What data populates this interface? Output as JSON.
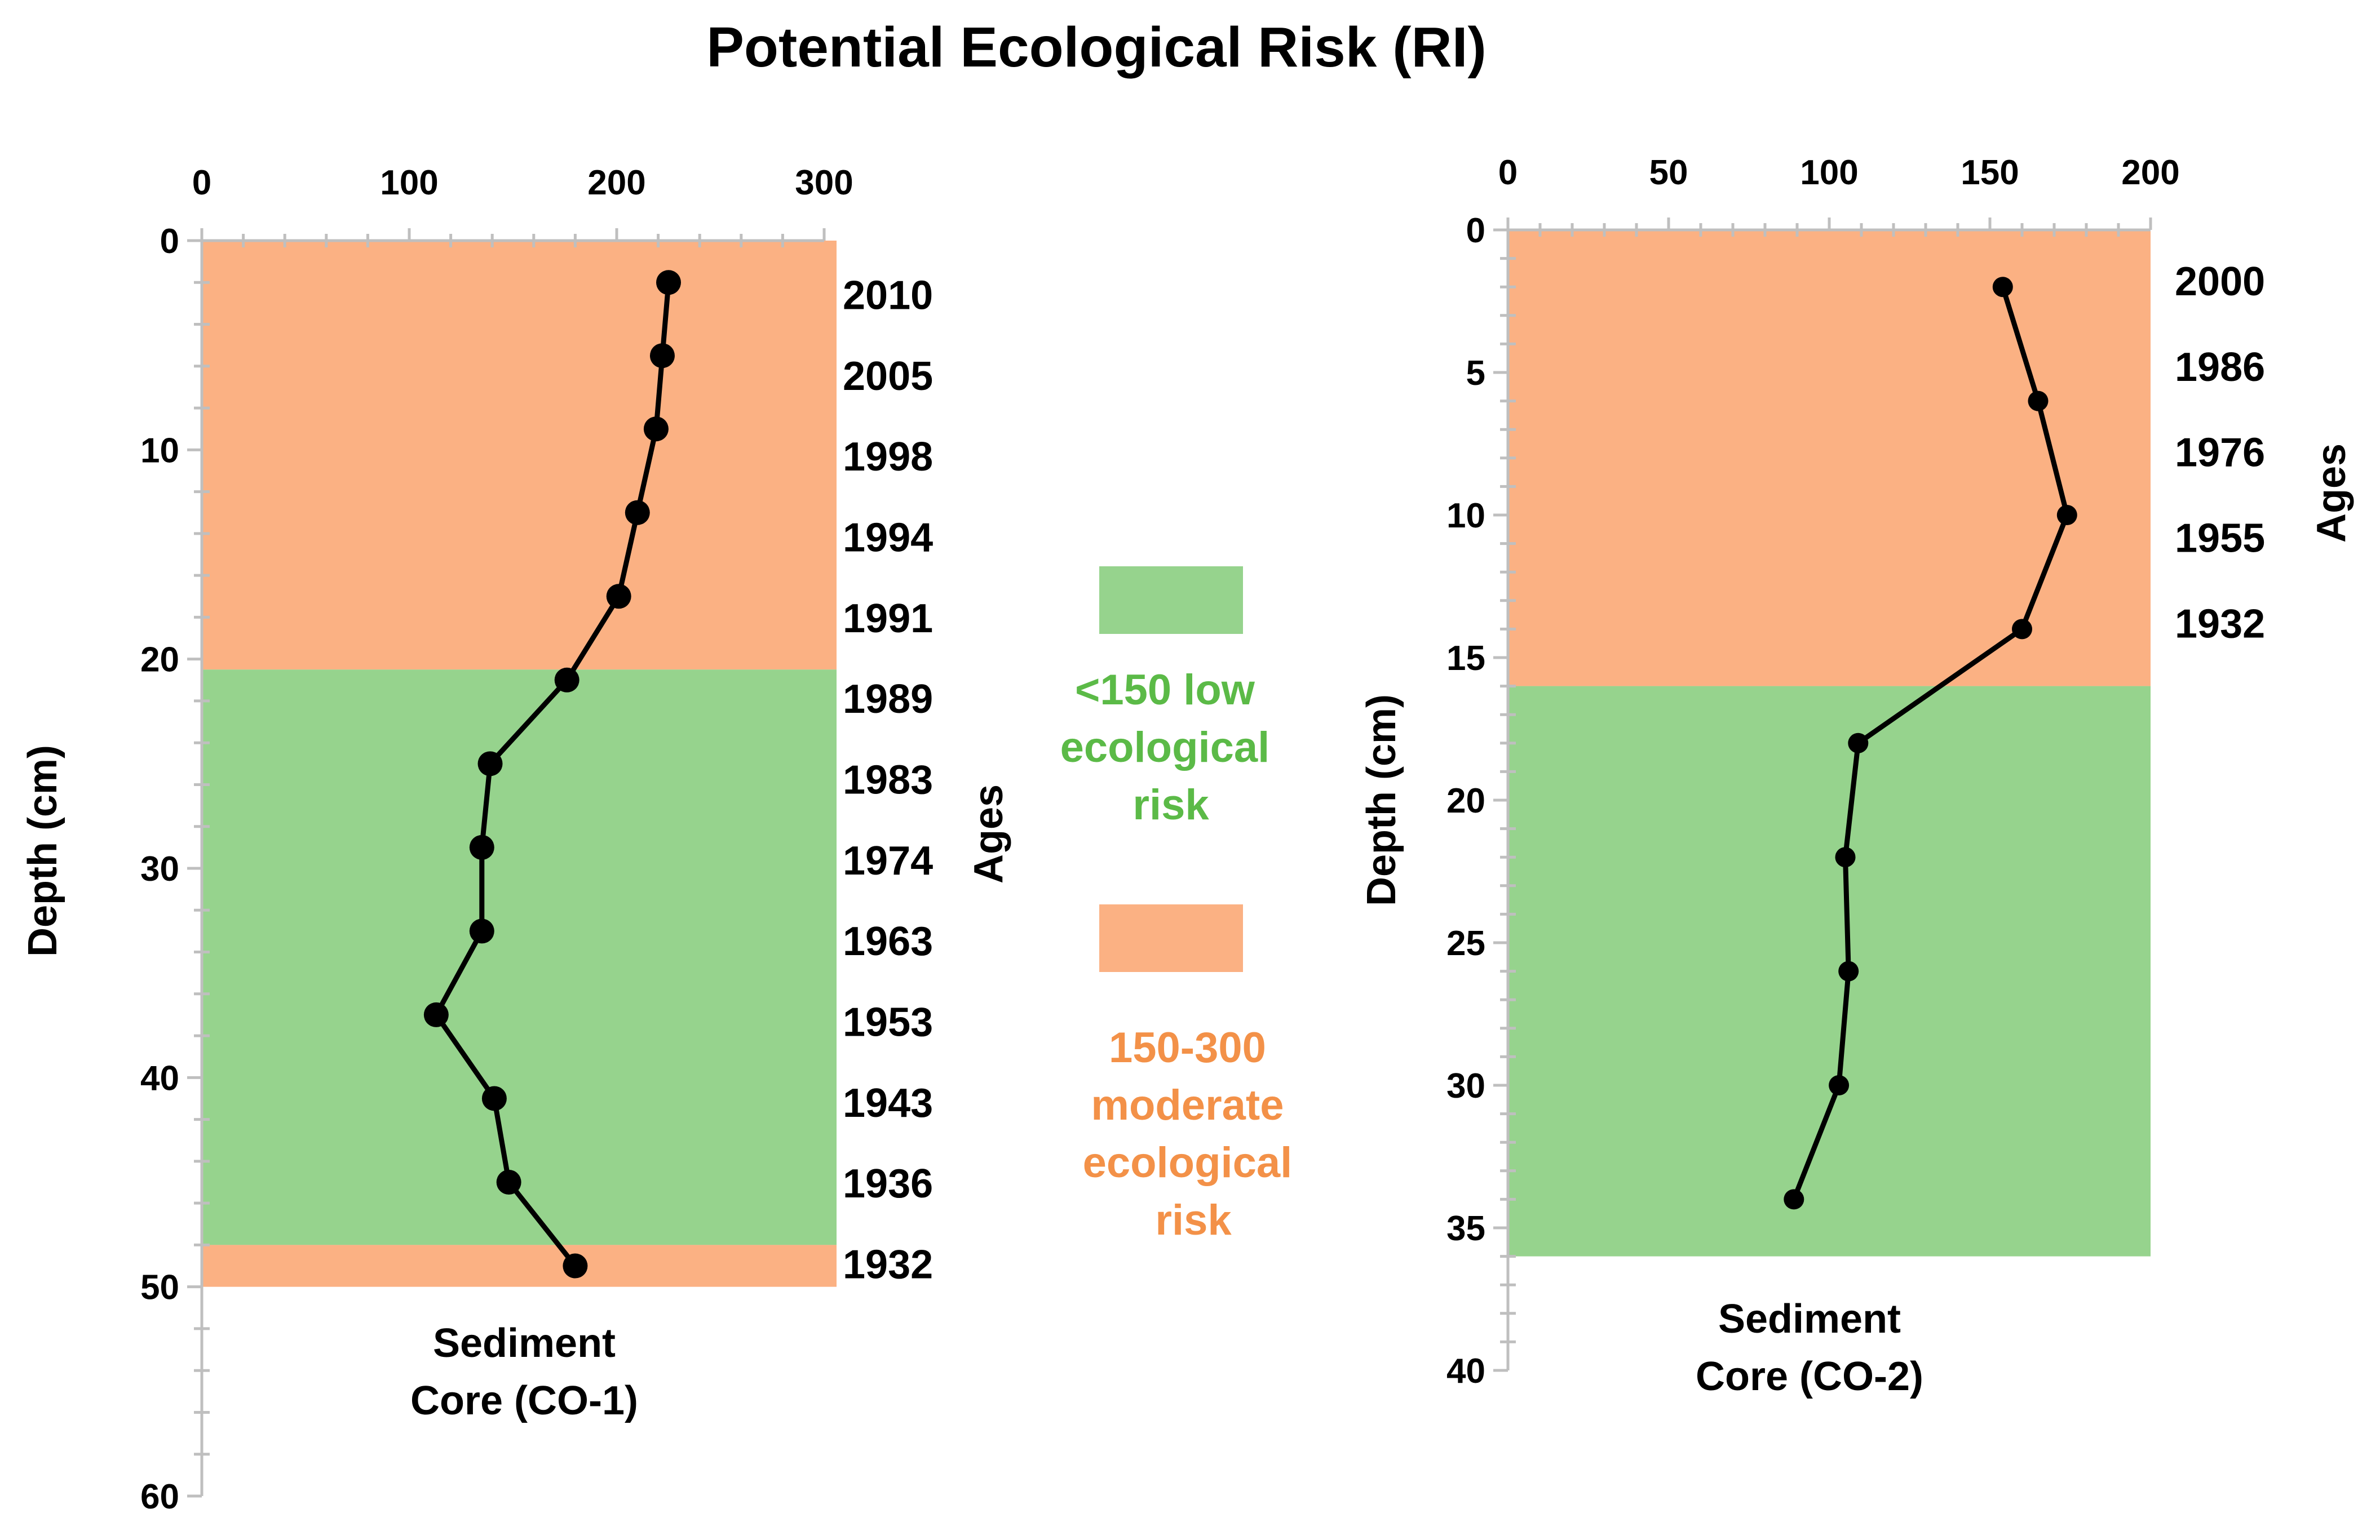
{
  "title": "Potential Ecological Risk (RI)",
  "colors": {
    "low": "#96d38d",
    "moderate": "#fbb183",
    "low_text": "#5bba47",
    "moderate_text": "#f39148",
    "line": "#000000",
    "axis": "#bfbfbf"
  },
  "legend": {
    "low_lines": [
      "<150 low",
      "ecological",
      "risk"
    ],
    "moderate_lines": [
      "150-300",
      "moderate",
      "ecological",
      "risk"
    ]
  },
  "chart_data": [
    {
      "type": "line",
      "xlabel": "Sediment Core (CO-1)",
      "xlabel_lines": [
        "Sediment",
        "Core (CO-1)"
      ],
      "ylabel": "Depth (cm)",
      "ages_label": "Ages",
      "xlim": [
        0,
        300
      ],
      "ylim": [
        0,
        60
      ],
      "xticks": [
        0,
        100,
        200,
        300
      ],
      "yticks": [
        0,
        10,
        20,
        30,
        40,
        50,
        60
      ],
      "bands": [
        {
          "class": "moderate",
          "x_from": 0,
          "x_to": 300,
          "y_from": 0,
          "y_to": 20.5
        },
        {
          "class": "low",
          "x_from": 0,
          "x_to": 300,
          "y_from": 20.5,
          "y_to": 48
        },
        {
          "class": "moderate",
          "x_from": 0,
          "x_to": 300,
          "y_from": 48,
          "y_to": 50
        }
      ],
      "series": [
        {
          "x": [
            225,
            222,
            219,
            210,
            201,
            176,
            139,
            135,
            135,
            113,
            141,
            148,
            180
          ],
          "y": [
            2,
            5.5,
            9,
            13,
            17,
            21,
            25,
            29,
            33,
            37,
            41,
            45,
            49
          ]
        }
      ],
      "ages": [
        "2010",
        "2005",
        "1998",
        "1994",
        "1991",
        "1989",
        "1983",
        "1974",
        "1963",
        "1953",
        "1943",
        "1936",
        "1932"
      ]
    },
    {
      "type": "line",
      "xlabel": "Sediment Core (CO-2)",
      "xlabel_lines": [
        "Sediment",
        "Core (CO-2)"
      ],
      "ylabel": "Depth (cm)",
      "ages_label": "Ages",
      "xlim": [
        0,
        200
      ],
      "ylim": [
        0,
        40
      ],
      "xticks": [
        0,
        50,
        100,
        150,
        200
      ],
      "yticks": [
        0,
        5,
        10,
        15,
        20,
        25,
        30,
        35,
        40
      ],
      "bands": [
        {
          "class": "moderate",
          "x_from": 0,
          "x_to": 200,
          "y_from": 0,
          "y_to": 16
        },
        {
          "class": "low",
          "x_from": 0,
          "x_to": 200,
          "y_from": 16,
          "y_to": 36
        }
      ],
      "series": [
        {
          "x": [
            154,
            165,
            174,
            160,
            109,
            105,
            106,
            103,
            89
          ],
          "y": [
            2,
            6,
            10,
            14,
            18,
            22,
            26,
            30,
            34
          ]
        }
      ],
      "ages": [
        "2000",
        "1986",
        "1976",
        "1955",
        "1932"
      ]
    }
  ]
}
